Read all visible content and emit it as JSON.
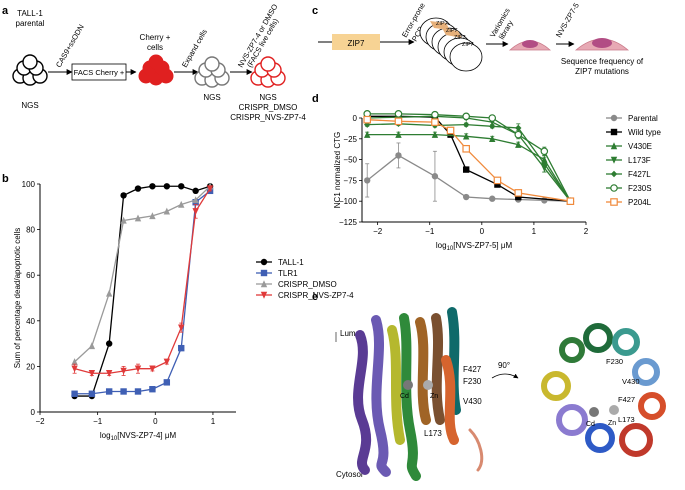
{
  "panels": {
    "a": {
      "letter": "a",
      "parental_label_1": "TALL-1",
      "parental_label_2": "parental",
      "edit_label": "CAS9+ssODN",
      "facs_box": "FACS Cherry +",
      "cherry_label_1": "Cherry +",
      "cherry_label_2": "cells",
      "expand_label": "Expand cells",
      "treat_label_1": "NVS-ZP7-4 or DMSO",
      "treat_label_2": "(FACS live cells)",
      "ngs_1": "NGS",
      "ngs_2": "NGS",
      "ngs_3": "NGS",
      "crispr_dmso": "CRISPR_DMSO",
      "crispr_nvs": "CRISPR_NVS-ZP7-4"
    },
    "c": {
      "letter": "c",
      "gene_label": "ZIP7",
      "pcr_label_1": "Error-prone",
      "pcr_label_2": "PCR",
      "plasmid_labels": [
        "ZIP7",
        "ZIP7",
        "ZIP7",
        "ZIP7"
      ],
      "library_label_1": "Variomics",
      "library_label_2": "library",
      "compound_label": "NVS-ZP7-5",
      "result_label_1": "Sequence frequency of",
      "result_label_2": "ZIP7 mutations"
    },
    "e": {
      "letter": "e",
      "lumen": "Lumen",
      "cytosol": "Cytosol",
      "rotation": "90°",
      "left_residues": [
        "F427",
        "F230",
        "V430",
        "L173"
      ],
      "left_ions": [
        "Cd",
        "Zn"
      ],
      "right_residues": [
        "F230",
        "V430",
        "F427",
        "L173"
      ],
      "right_ions": [
        "Cd",
        "Zn"
      ]
    }
  },
  "chart_data": [
    {
      "panel": "b",
      "type": "line",
      "xlabel": "log10[NVS-ZP7-4] μM",
      "ylabel": "Sum of percentage dead/apoptotic cells",
      "xlim": [
        -2,
        1.4
      ],
      "ylim": [
        0,
        100
      ],
      "xticks": [
        -2,
        -1,
        0,
        1
      ],
      "yticks": [
        0,
        20,
        40,
        60,
        80,
        100
      ],
      "legend_position": "right",
      "series": [
        {
          "name": "TALL-1",
          "color": "#000000",
          "marker": "circle",
          "x": [
            -1.4,
            -1.1,
            -0.8,
            -0.55,
            -0.3,
            -0.05,
            0.2,
            0.45,
            0.7,
            0.95
          ],
          "y": [
            7,
            7,
            30,
            95,
            98,
            99,
            99,
            99,
            97,
            99
          ],
          "err": [
            0,
            0,
            0,
            0,
            0,
            0,
            0,
            0,
            0,
            0
          ]
        },
        {
          "name": "TLR1",
          "color": "#3f5fb4",
          "marker": "square",
          "x": [
            -1.4,
            -1.1,
            -0.8,
            -0.55,
            -0.3,
            -0.05,
            0.2,
            0.45,
            0.7,
            0.95
          ],
          "y": [
            8,
            8,
            9,
            9,
            9,
            10,
            13,
            28,
            92,
            97
          ],
          "err": [
            0,
            0,
            0,
            0,
            0,
            0,
            0,
            0,
            0,
            0
          ]
        },
        {
          "name": "CRISPR_DMSO",
          "color": "#9a9a9a",
          "marker": "triangle",
          "x": [
            -1.4,
            -1.1,
            -0.8,
            -0.55,
            -0.3,
            -0.05,
            0.2,
            0.45,
            0.7,
            0.95
          ],
          "y": [
            22,
            29,
            52,
            84,
            85,
            86,
            88,
            91,
            93,
            99
          ],
          "err": [
            0,
            0,
            0,
            0,
            0,
            0,
            0,
            0,
            0,
            0
          ]
        },
        {
          "name": "CRISPR_NVS-ZP7-4",
          "color": "#e03a3a",
          "marker": "triangle-down",
          "x": [
            -1.4,
            -1.1,
            -0.8,
            -0.55,
            -0.3,
            -0.05,
            0.2,
            0.45,
            0.7,
            0.95
          ],
          "y": [
            19,
            17,
            17,
            18,
            19,
            19,
            22,
            37,
            88,
            98
          ],
          "err": [
            2,
            1,
            1,
            2,
            2,
            1,
            1,
            2,
            3,
            1
          ]
        }
      ]
    },
    {
      "panel": "d",
      "type": "line",
      "xlabel": "log10[NVS-ZP7-5] μM",
      "ylabel": "NC1 normalized CTG",
      "xlim": [
        -2.3,
        2
      ],
      "ylim": [
        -125,
        0
      ],
      "xticks": [
        -2,
        -1,
        0,
        1,
        2
      ],
      "yticks": [
        -125,
        -100,
        -75,
        -50,
        -25,
        0
      ],
      "legend_position": "right",
      "series": [
        {
          "name": "Parental",
          "color": "#8a8a8a",
          "marker": "circle",
          "x": [
            -2.2,
            -1.6,
            -0.9,
            -0.3,
            0.2,
            0.7,
            1.2,
            1.7
          ],
          "y": [
            -75,
            -45,
            -70,
            -95,
            -97,
            -98,
            -99,
            -100
          ],
          "err": [
            20,
            15,
            30,
            2,
            1,
            1,
            1,
            1
          ]
        },
        {
          "name": "Wild type",
          "color": "#000000",
          "marker": "square",
          "x": [
            -2.2,
            -1.6,
            -0.9,
            -0.6,
            -0.3,
            0.3,
            0.7,
            1.7
          ],
          "y": [
            2,
            2,
            1,
            -20,
            -62,
            -80,
            -95,
            -100
          ],
          "err": [
            2,
            2,
            2,
            2,
            2,
            2,
            2,
            1
          ]
        },
        {
          "name": "V430E",
          "color": "#2e7d32",
          "marker": "triangle",
          "x": [
            -2.2,
            -1.6,
            -0.9,
            -0.3,
            0.2,
            0.7,
            1.2,
            1.7
          ],
          "y": [
            -20,
            -20,
            -20,
            -22,
            -25,
            -32,
            -50,
            -100
          ],
          "err": [
            3,
            3,
            3,
            3,
            3,
            3,
            3,
            1
          ]
        },
        {
          "name": "L173F",
          "color": "#2e7d32",
          "marker": "triangle-down",
          "x": [
            -2.2,
            -1.6,
            -0.9,
            -0.3,
            0.2,
            0.7,
            1.2,
            1.7
          ],
          "y": [
            0,
            1,
            2,
            0,
            -5,
            -20,
            -60,
            -100
          ],
          "err": [
            2,
            2,
            2,
            2,
            3,
            5,
            5,
            1
          ]
        },
        {
          "name": "F427L",
          "color": "#2e7d32",
          "marker": "diamond",
          "x": [
            -2.2,
            -1.6,
            -0.9,
            -0.3,
            0.2,
            0.7,
            1.2,
            1.7
          ],
          "y": [
            -8,
            -7,
            -9,
            -8,
            -10,
            -12,
            -55,
            -100
          ],
          "err": [
            2,
            2,
            2,
            2,
            2,
            5,
            10,
            1
          ]
        },
        {
          "name": "F230S",
          "color": "#2e7d32",
          "marker": "circle-open",
          "x": [
            -2.2,
            -1.6,
            -0.9,
            -0.3,
            0.2,
            0.7,
            1.2,
            1.7
          ],
          "y": [
            5,
            5,
            4,
            2,
            0,
            -20,
            -40,
            -100
          ],
          "err": [
            2,
            2,
            2,
            2,
            2,
            3,
            5,
            1
          ]
        },
        {
          "name": "P204L",
          "color": "#f08a3c",
          "marker": "square-open",
          "x": [
            -2.2,
            -1.6,
            -0.9,
            -0.6,
            -0.3,
            0.3,
            0.7,
            1.7
          ],
          "y": [
            -2,
            -4,
            -5,
            -15,
            -37,
            -75,
            -90,
            -100
          ],
          "err": [
            2,
            2,
            2,
            2,
            2,
            2,
            2,
            1
          ]
        }
      ]
    }
  ]
}
